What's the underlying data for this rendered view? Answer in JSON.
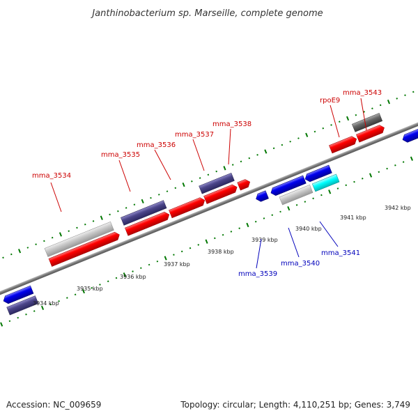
{
  "title": "Janthinobacterium sp. Marseille, complete genome",
  "accession": "Accession: NC_009659",
  "topology": "Topology: circular; Length: 4,110,251 bp; Genes: 3,749",
  "colors": {
    "red": "#ff0000",
    "blue": "#0000ee",
    "navy": "#4b4589",
    "light_gray": "#c8c8c8",
    "dark_gray": "#666666",
    "cyan": "#00ffff",
    "tick_green": "#007700",
    "label_red": "#cc0000",
    "label_blue": "#0000bb"
  },
  "scale_labels": [
    "3934 kbp",
    "3935 kbp",
    "3936 kbp",
    "3937 kbp",
    "3938 kbp",
    "3939 kbp",
    "3940 kbp",
    "3941 kbp",
    "3942 kbp"
  ],
  "upper_track_genes": [
    {
      "label": "mma_3534",
      "color": "red"
    },
    {
      "label": "mma_3535",
      "color": "red"
    },
    {
      "label": "mma_3536",
      "color": "red"
    },
    {
      "label": "mma_3537",
      "color": "red"
    },
    {
      "label": "mma_3538",
      "color": "red"
    },
    {
      "label": "rpoE9",
      "color": "red"
    },
    {
      "label": "mma_3543",
      "color": "red"
    }
  ],
  "lower_track_genes": [
    {
      "label": "mma_3539",
      "color": "blue"
    },
    {
      "label": "mma_3540",
      "color": "blue"
    },
    {
      "label": "mma_3541",
      "color": "blue"
    }
  ]
}
